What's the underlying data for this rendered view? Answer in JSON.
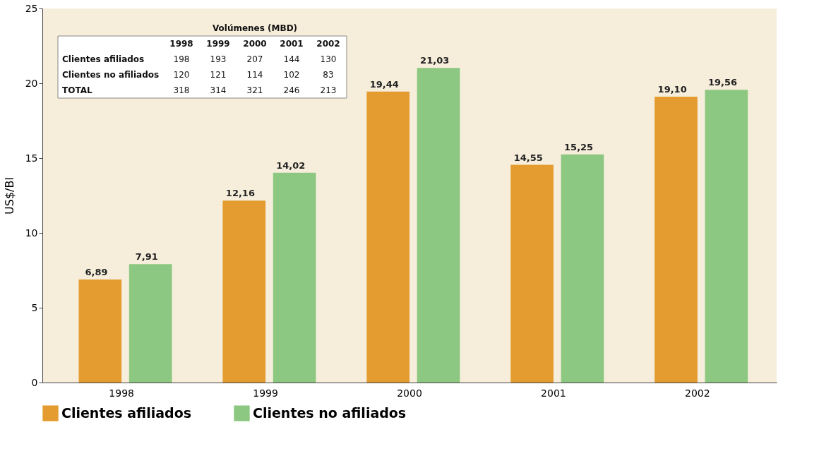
{
  "chart_data": {
    "type": "bar",
    "ylabel": "US$/Bl",
    "categories": [
      "1998",
      "1999",
      "2000",
      "2001",
      "2002"
    ],
    "series": [
      {
        "name": "Clientes afiliados",
        "color": "#e49b2f",
        "values": [
          6.89,
          12.16,
          19.44,
          14.55,
          19.1
        ],
        "value_labels": [
          "6,89",
          "12,16",
          "19,44",
          "14,55",
          "19,10"
        ]
      },
      {
        "name": "Clientes no afiliados",
        "color": "#8dc882",
        "values": [
          7.91,
          14.02,
          21.03,
          15.25,
          19.56
        ],
        "value_labels": [
          "7,91",
          "14,02",
          "21,03",
          "15,25",
          "19,56"
        ]
      }
    ],
    "ylim": [
      0,
      25
    ],
    "yticks": [
      0,
      5,
      10,
      15,
      20,
      25
    ],
    "grid": false,
    "legend": "bottom",
    "annotations": [
      "Volúmenes (MBD)",
      "1998",
      "1999",
      "2000",
      "2001",
      "2002",
      "Clientes afiliados",
      "198",
      "193",
      "207",
      "144",
      "130",
      "Clientes no afiliados",
      "120",
      "121",
      "114",
      "102",
      "83",
      "TOTAL",
      "318",
      "314",
      "321",
      "246",
      "213"
    ]
  }
}
